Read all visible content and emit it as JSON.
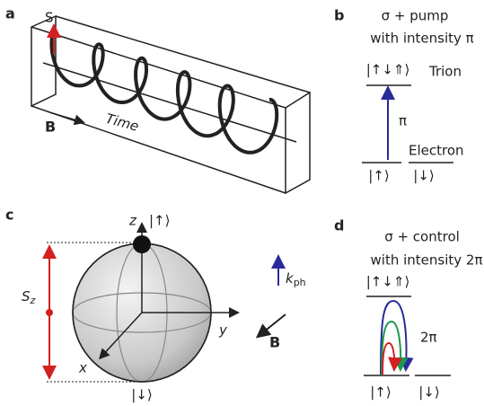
{
  "panel_a": {
    "label": "a",
    "spin": "S",
    "field": "B",
    "axis": "Time"
  },
  "panel_b": {
    "label": "b",
    "title_1": "σ + pump",
    "title_2": "with intensity π",
    "trion_state": "|↑↓⇑⟩",
    "trion": "Trion",
    "transition": "π",
    "electron": "Electron",
    "up": "|↑⟩",
    "down": "|↓⟩"
  },
  "panel_c": {
    "label": "c",
    "z": "z",
    "up": "|↑⟩",
    "sz": {
      "main": "S",
      "sub": "z"
    },
    "y": "y",
    "x": "x",
    "down": "|↓⟩",
    "k": {
      "main": "k",
      "sub": "ph"
    },
    "field": "B"
  },
  "panel_d": {
    "label": "d",
    "title_1": "σ + control",
    "title_2": "with intensity 2π",
    "trion_state": "|↑↓⇑⟩",
    "rotation": "2π",
    "up": "|↑⟩",
    "down": "|↓⟩"
  }
}
